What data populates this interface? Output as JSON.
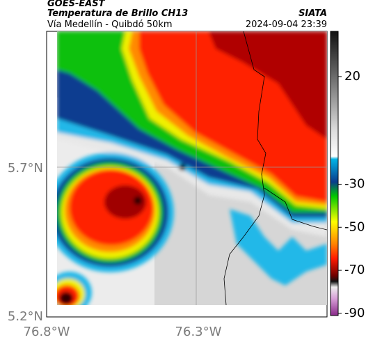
{
  "header": {
    "satellite": "GOES-EAST",
    "product": "Temperatura de Brillo CH13",
    "source": "SIATA",
    "route": "Vía Medellín - Quibdó 50km",
    "datetime": "2024-09-04 23:39"
  },
  "map": {
    "lat_labels": [
      "5.7°N",
      "5.2°N"
    ],
    "lon_labels": [
      "76.8°W",
      "76.3°W"
    ]
  },
  "colorbar": {
    "limits": [
      -91,
      41
    ],
    "ticks": [
      20,
      -30,
      -50,
      -70,
      -90
    ]
  }
}
